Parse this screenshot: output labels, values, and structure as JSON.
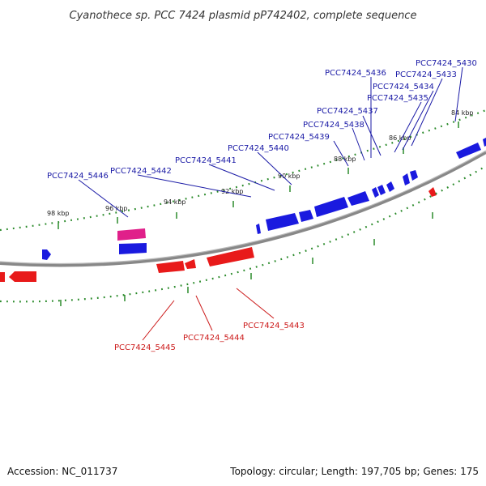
{
  "title": "Cyanothece sp. PCC 7424 plasmid pP742402, complete sequence",
  "footer": {
    "accession": "Accession: NC_011737",
    "summary": "Topology: circular; Length: 197,705 bp; Genes: 175"
  },
  "colors": {
    "forward": "#1a1adf",
    "reverse": "#e81a1a",
    "highlight": "#e0208a",
    "tick": "#2a8a2a",
    "backbone": "#888888",
    "forward_label": "#1a1aa6",
    "reverse_label": "#cc1a1a"
  },
  "tick_labels": [
    "84 kbp",
    "86 kbp",
    "88 kbp",
    "90 kbp",
    "92 kbp",
    "94 kbp",
    "96 kbp",
    "98 kbp"
  ],
  "forward_gene_labels": [
    "PCC7424_5430",
    "PCC7424_5433",
    "PCC7424_5434",
    "PCC7424_5435",
    "PCC7424_5436",
    "PCC7424_5437",
    "PCC7424_5438",
    "PCC7424_5439",
    "PCC7424_5440",
    "PCC7424_5441",
    "PCC7424_5442",
    "PCC7424_5446"
  ],
  "reverse_gene_labels": [
    "PCC7424_5443",
    "PCC7424_5444",
    "PCC7424_5445"
  ]
}
